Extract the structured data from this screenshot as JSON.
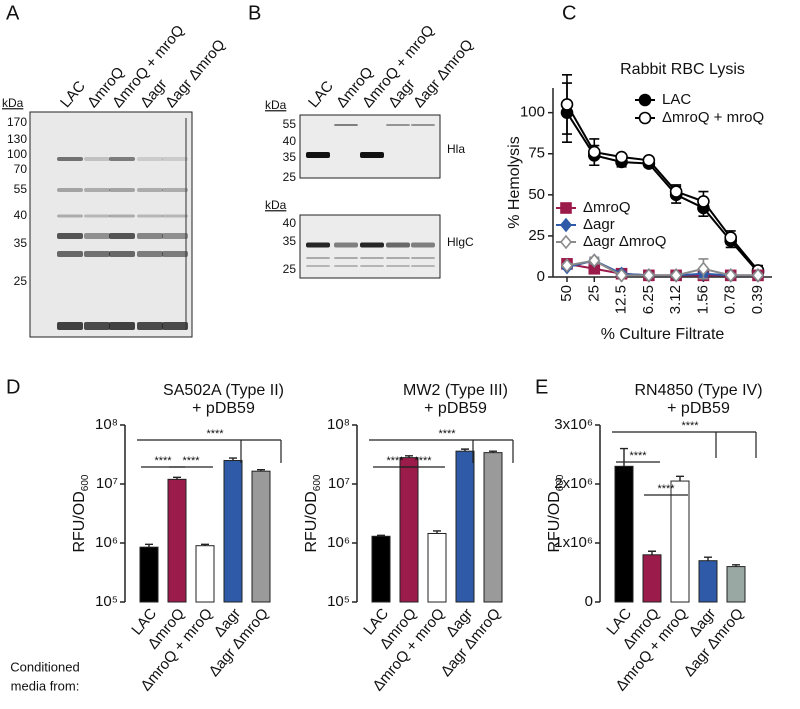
{
  "panel_labels": [
    "A",
    "B",
    "C",
    "D",
    "E"
  ],
  "gel_a": {
    "unit": "kDa",
    "lanes": [
      "LAC",
      "ΔmroQ",
      "ΔmroQ + mroQ",
      "Δagr",
      "Δagr ΔmroQ"
    ],
    "markers": [
      170,
      130,
      100,
      70,
      55,
      40,
      35,
      25
    ]
  },
  "gel_b": {
    "lanes": [
      "LAC",
      "ΔmroQ",
      "ΔmroQ + mroQ",
      "Δagr",
      "Δagr ΔmroQ"
    ],
    "blots": [
      {
        "unit": "kDa",
        "markers": [
          55,
          40,
          35,
          25
        ],
        "label": "Hla"
      },
      {
        "unit": "kDa",
        "markers": [
          40,
          35,
          25
        ],
        "label": "HlgC"
      }
    ]
  },
  "row_label": [
    "Conditioned",
    "media from:"
  ],
  "chart_data": [
    {
      "type": "line",
      "title": "Rabbit RBC Lysis",
      "x_label": "% Culture Filtrate",
      "y_label": "% Hemolysis",
      "categories": [
        "50",
        "25",
        "12.5",
        "6.25",
        "3.12",
        "1.56",
        "0.78",
        "0.39"
      ],
      "ylim": [
        0,
        115
      ],
      "yticks": [
        0,
        25,
        50,
        75,
        100
      ],
      "series": [
        {
          "name": "LAC",
          "color": "#000000",
          "marker": "circle",
          "values": [
            100,
            74,
            70,
            69,
            50,
            42,
            22,
            3
          ],
          "errors": [
            18,
            6,
            3,
            2,
            5,
            5,
            4,
            3
          ]
        },
        {
          "name": "ΔmroQ + mroQ",
          "color": "#000000",
          "marker": "circle-open",
          "values": [
            105,
            76,
            73,
            71,
            52,
            46,
            24,
            4
          ],
          "errors": [
            18,
            8,
            2,
            2,
            4,
            6,
            4,
            3
          ]
        },
        {
          "name": "ΔmroQ",
          "color": "#9b1b4a",
          "marker": "square",
          "values": [
            8,
            5,
            2,
            1,
            1,
            1,
            1,
            1
          ],
          "errors": [
            2,
            1,
            1,
            1,
            1,
            1,
            1,
            1
          ]
        },
        {
          "name": "Δagr",
          "color": "#2e5aa8",
          "marker": "diamond",
          "values": [
            6,
            10,
            2,
            1,
            1,
            2,
            1,
            1
          ],
          "errors": [
            1,
            1,
            1,
            1,
            1,
            2,
            1,
            1
          ]
        },
        {
          "name": "Δagr ΔmroQ",
          "color": "#8a8a8a",
          "marker": "diamond-open",
          "values": [
            7,
            10,
            1,
            1,
            1,
            5,
            1,
            1
          ],
          "errors": [
            1,
            2,
            1,
            1,
            1,
            6,
            1,
            1
          ]
        }
      ]
    },
    {
      "type": "bar",
      "title": "SA502A (Type II)",
      "subtitle": "+ pDB59",
      "y_label": {
        "text": "RFU/OD",
        "subscript": "600"
      },
      "categories": [
        "LAC",
        "ΔmroQ",
        "ΔmroQ + mroQ",
        "Δagr",
        "Δagr ΔmroQ"
      ],
      "colors": [
        "#000000",
        "#9b1b4a",
        "#ffffff",
        "#2e5aa8",
        "#9a9a9a"
      ],
      "values": [
        850000,
        12000000,
        900000,
        25000000,
        16500000
      ],
      "errors": [
        100000,
        1000000,
        50000,
        2500000,
        1000000
      ],
      "log": true,
      "ylim": [
        100000,
        100000000
      ],
      "yticks": [
        {
          "value": 100000,
          "label": "10⁵"
        },
        {
          "value": 1000000,
          "label": "10⁶"
        },
        {
          "value": 10000000,
          "label": "10⁷"
        },
        {
          "value": 100000000,
          "label": "10⁸"
        }
      ],
      "significance": [
        "****",
        "****",
        "****"
      ]
    },
    {
      "type": "bar",
      "title": "MW2 (Type III)",
      "subtitle": "+ pDB59",
      "y_label": {
        "text": "RFU/OD",
        "subscript": "600"
      },
      "categories": [
        "LAC",
        "ΔmroQ",
        "ΔmroQ + mroQ",
        "Δagr",
        "Δagr ΔmroQ"
      ],
      "colors": [
        "#000000",
        "#9b1b4a",
        "#ffffff",
        "#2e5aa8",
        "#9a9a9a"
      ],
      "values": [
        1300000,
        28000000,
        1450000,
        36000000,
        34000000
      ],
      "errors": [
        50000,
        2000000,
        150000,
        3000000,
        2000000
      ],
      "log": true,
      "ylim": [
        100000,
        100000000
      ],
      "yticks": [
        {
          "value": 100000,
          "label": "10⁵"
        },
        {
          "value": 1000000,
          "label": "10⁶"
        },
        {
          "value": 10000000,
          "label": "10⁷"
        },
        {
          "value": 100000000,
          "label": "10⁸"
        }
      ],
      "significance": [
        "****",
        "****",
        "****"
      ]
    },
    {
      "type": "bar",
      "title": "RN4850 (Type IV)",
      "subtitle": "+ pDB59",
      "y_label": {
        "text": "RFU/OD",
        "subscript": "600"
      },
      "categories": [
        "LAC",
        "ΔmroQ",
        "ΔmroQ + mroQ",
        "Δagr",
        "Δagr ΔmroQ"
      ],
      "colors": [
        "#000000",
        "#9b1b4a",
        "#ffffff",
        "#2e5aa8",
        "#9aa8a4"
      ],
      "values": [
        2300000,
        800000,
        2050000,
        700000,
        600000
      ],
      "errors": [
        300000,
        60000,
        80000,
        60000,
        30000
      ],
      "log": false,
      "ylim": [
        0,
        3000000
      ],
      "yticks": [
        0,
        {
          "value": 1000000,
          "label": "1x10⁶"
        },
        {
          "value": 2000000,
          "label": "2x10⁶"
        },
        {
          "value": 3000000,
          "label": "3x10⁶"
        }
      ],
      "significance": [
        "****",
        "****",
        "****"
      ]
    }
  ]
}
